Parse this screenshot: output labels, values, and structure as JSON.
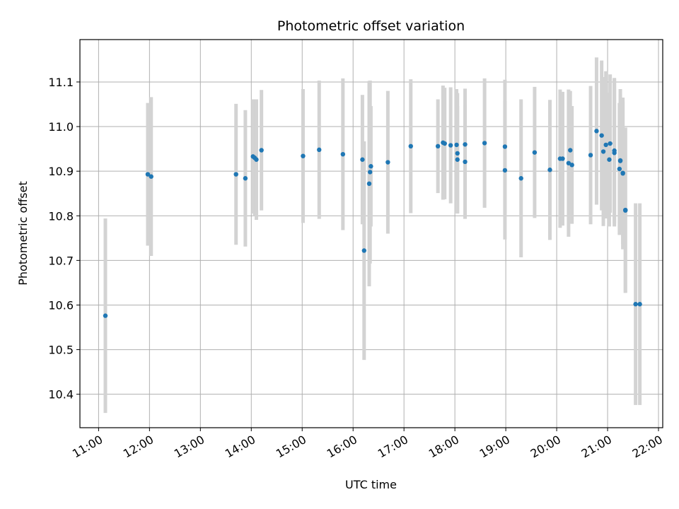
{
  "chart_data": {
    "type": "scatter",
    "title": "Photometric offset variation",
    "xlabel": "UTC time",
    "ylabel": "Photometric offset",
    "xlim": [
      "10:38",
      "22:05"
    ],
    "ylim": [
      10.325,
      11.195
    ],
    "grid": true,
    "x_ticks": [
      "11:00",
      "12:00",
      "13:00",
      "14:00",
      "15:00",
      "16:00",
      "17:00",
      "18:00",
      "19:00",
      "20:00",
      "21:00",
      "22:00"
    ],
    "y_ticks": [
      "10.4",
      "10.5",
      "10.6",
      "10.7",
      "10.8",
      "10.9",
      "11.0",
      "11.1"
    ],
    "colors": {
      "point": "#1f77b4",
      "errorbar": "#d3d3d3",
      "grid": "#b0b0b0"
    },
    "series": [
      {
        "x": [
          "11:08",
          "11:58",
          "12:02",
          "13:42",
          "13:53",
          "14:02",
          "14:04",
          "14:06",
          "14:12",
          "15:01",
          "15:20",
          "15:48",
          "16:11",
          "16:13",
          "16:19",
          "16:20",
          "16:21",
          "16:41",
          "17:08",
          "17:40",
          "17:46",
          "17:48",
          "17:55",
          "18:02",
          "18:03",
          "18:03",
          "18:12",
          "18:12",
          "18:35",
          "18:59",
          "18:59",
          "19:18",
          "19:34",
          "19:52",
          "20:04",
          "20:07",
          "20:14",
          "20:16",
          "20:18",
          "20:40",
          "20:47",
          "20:53",
          "20:55",
          "20:58",
          "21:02",
          "21:03",
          "21:08",
          "21:08",
          "21:14",
          "21:15",
          "21:15",
          "21:18",
          "21:18",
          "21:21",
          "21:21",
          "21:33",
          "21:38"
        ],
        "y": [
          10.576,
          10.893,
          10.888,
          10.893,
          10.884,
          10.933,
          10.93,
          10.926,
          10.947,
          10.934,
          10.948,
          10.938,
          10.926,
          10.722,
          10.872,
          10.898,
          10.911,
          10.92,
          10.956,
          10.956,
          10.964,
          10.962,
          10.958,
          10.959,
          10.94,
          10.926,
          10.96,
          10.921,
          10.963,
          10.902,
          10.955,
          10.884,
          10.942,
          10.903,
          10.928,
          10.928,
          10.918,
          10.947,
          10.914,
          10.936,
          10.99,
          10.98,
          10.944,
          10.959,
          10.926,
          10.962,
          10.946,
          10.941,
          10.905,
          10.924,
          10.923,
          10.896,
          10.895,
          10.812,
          10.813,
          10.602,
          10.602
        ],
        "yerr": [
          0.218,
          0.16,
          0.178,
          0.158,
          0.153,
          0.128,
          0.13,
          0.135,
          0.135,
          0.15,
          0.155,
          0.17,
          0.145,
          0.245,
          0.23,
          0.205,
          0.135,
          0.16,
          0.15,
          0.105,
          0.128,
          0.125,
          0.13,
          0.125,
          0.135,
          0.12,
          0.125,
          0.128,
          0.145,
          0.155,
          0.15,
          0.177,
          0.147,
          0.157,
          0.155,
          0.15,
          0.165,
          0.133,
          0.132,
          0.155,
          0.165,
          0.168,
          0.167,
          0.165,
          0.15,
          0.155,
          0.163,
          0.165,
          0.148,
          0.16,
          0.15,
          0.16,
          0.17,
          0.185,
          0.185,
          0.226,
          0.226
        ]
      }
    ]
  }
}
